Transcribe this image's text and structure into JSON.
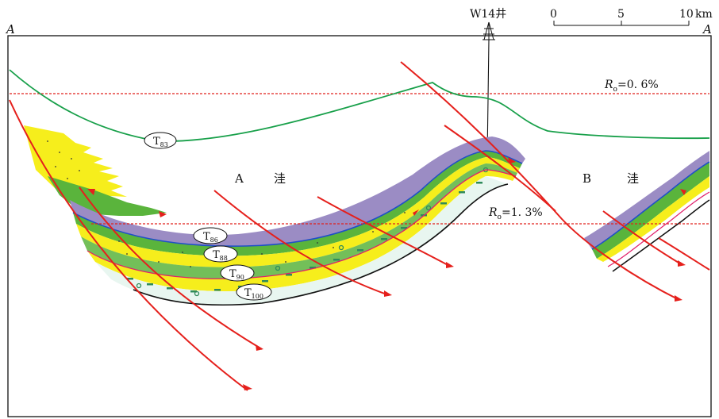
{
  "section": {
    "left_end": "A",
    "right_end": "A"
  },
  "well": {
    "name": "W14井"
  },
  "scale_bar": {
    "ticks": [
      "0",
      "5",
      "10"
    ],
    "unit": "km"
  },
  "ro_lines": [
    {
      "symbol": "R",
      "subscript": "o",
      "value": "=0. 6%",
      "color": "#e0201c"
    },
    {
      "symbol": "R",
      "subscript": "o",
      "value": "=1. 3%",
      "color": "#e0201c"
    }
  ],
  "depressions": [
    {
      "letter": "A",
      "char": "洼"
    },
    {
      "letter": "B",
      "char": "洼"
    }
  ],
  "horizons": [
    {
      "main": "T",
      "sub": "83",
      "color": "#18a04a"
    },
    {
      "main": "T",
      "sub": "86",
      "color": "#1f4fc8"
    },
    {
      "main": "T",
      "sub": "88",
      "color": "#3aa535"
    },
    {
      "main": "T",
      "sub": "90",
      "color": "#e0206a"
    },
    {
      "main": "T",
      "sub": "100",
      "color": "#111111"
    }
  ],
  "colors": {
    "fault": "#e5201c",
    "purple_layer": "#9b8cc4",
    "green_layer": "#5ab43c",
    "yellow_layer": "#f6ee1c",
    "marl_dash": "#2f8a5a",
    "frame": "#111111"
  }
}
